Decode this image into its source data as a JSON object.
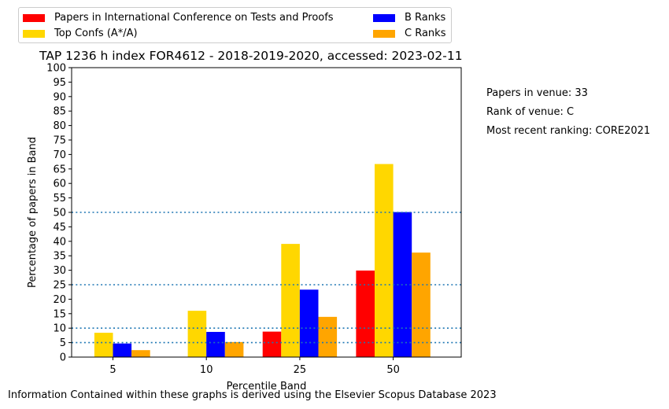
{
  "chart_data": {
    "type": "bar",
    "title": "TAP 1236 h index FOR4612 - 2018-2019-2020, accessed: 2023-02-11",
    "xlabel": "Percentile Band",
    "ylabel": "Percentage of papers in Band",
    "categories": [
      "5",
      "10",
      "25",
      "50"
    ],
    "ylim": [
      0,
      100
    ],
    "yticks": [
      "0",
      "5",
      "10",
      "15",
      "20",
      "25",
      "30",
      "35",
      "40",
      "45",
      "50",
      "55",
      "60",
      "65",
      "70",
      "75",
      "80",
      "85",
      "90",
      "95",
      "100"
    ],
    "reference_lines": [
      5,
      10,
      25,
      50
    ],
    "legend_position": "top (above plot, 2 columns)",
    "series": [
      {
        "name": "Papers in International Conference on Tests and Proofs",
        "color": "#ff0000",
        "values": [
          0,
          0,
          8.8,
          29.9
        ]
      },
      {
        "name": "Top Confs (A*/A)",
        "color": "#ffd700",
        "values": [
          8.4,
          16.0,
          39.1,
          66.7
        ]
      },
      {
        "name": "B Ranks",
        "color": "#0000ff",
        "values": [
          4.7,
          8.7,
          23.3,
          50.1
        ]
      },
      {
        "name": "C Ranks",
        "color": "#ffa500",
        "values": [
          2.4,
          5.2,
          13.9,
          36.1
        ]
      }
    ]
  },
  "side_notes": {
    "papers_in_venue": "Papers in venue: 33",
    "rank_of_venue": "Rank of venue: C",
    "recent_ranking": "Most recent ranking: CORE2021"
  },
  "footer": "Information Contained within these graphs is derived using the Elsevier Scopus Database 2023",
  "colors": {
    "reference_line": "#1f77b4",
    "axis": "#000000"
  }
}
